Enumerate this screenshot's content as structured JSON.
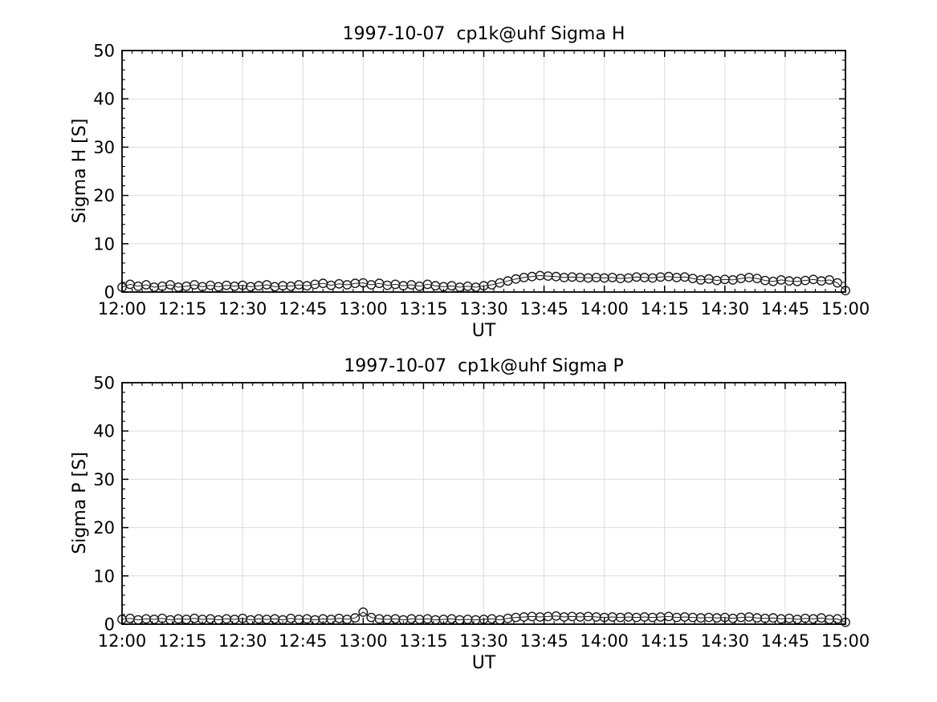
{
  "figure": {
    "background": "#ffffff",
    "colors": {
      "axis": "#000000",
      "grid": "#dcdcdc",
      "marker": "#1a1a1a",
      "line": "#1a1a1a",
      "text": "#000000"
    }
  },
  "chart_data": [
    {
      "type": "line",
      "title": "1997-10-07  cp1k@uhf Sigma H",
      "xlabel": "UT",
      "ylabel": "Sigma H [S]",
      "marker": "open-circle",
      "grid": true,
      "legend": "none",
      "ylim": [
        0,
        50
      ],
      "yticks": [
        0,
        10,
        20,
        30,
        40,
        50
      ],
      "y_minor_step": 2,
      "x_range_minutes": [
        720,
        900
      ],
      "xtick_labels": [
        "12:00",
        "12:15",
        "12:30",
        "12:45",
        "13:00",
        "13:15",
        "13:30",
        "13:45",
        "14:00",
        "14:15",
        "14:30",
        "14:45",
        "15:00"
      ],
      "x_minor_step_minutes": 2.5,
      "x_start_minutes": 720,
      "x_step_minutes": 2,
      "values": [
        1.0,
        1.6,
        1.2,
        1.5,
        1.0,
        1.2,
        1.5,
        1.0,
        1.2,
        1.5,
        1.1,
        1.4,
        1.1,
        1.4,
        1.2,
        1.4,
        1.1,
        1.3,
        1.5,
        1.1,
        1.3,
        1.2,
        1.5,
        1.3,
        1.6,
        1.8,
        1.4,
        1.7,
        1.5,
        1.8,
        1.9,
        1.5,
        1.8,
        1.4,
        1.6,
        1.3,
        1.5,
        1.2,
        1.6,
        1.3,
        1.1,
        1.3,
        1.0,
        1.2,
        1.0,
        1.3,
        1.5,
        1.9,
        2.3,
        2.7,
        3.0,
        3.2,
        3.4,
        3.3,
        3.2,
        3.0,
        3.1,
        3.0,
        2.9,
        3.0,
        2.9,
        3.0,
        2.8,
        2.9,
        3.1,
        3.0,
        2.9,
        3.1,
        3.2,
        3.0,
        3.1,
        2.8,
        2.5,
        2.7,
        2.4,
        2.6,
        2.5,
        2.8,
        3.0,
        2.8,
        2.4,
        2.2,
        2.5,
        2.3,
        2.2,
        2.4,
        2.6,
        2.3,
        2.5,
        1.9,
        0.3
      ]
    },
    {
      "type": "line",
      "title": "1997-10-07  cp1k@uhf Sigma P",
      "xlabel": "UT",
      "ylabel": "Sigma P [S]",
      "marker": "open-circle",
      "grid": true,
      "legend": "none",
      "ylim": [
        0,
        50
      ],
      "yticks": [
        0,
        10,
        20,
        30,
        40,
        50
      ],
      "y_minor_step": 2,
      "x_range_minutes": [
        720,
        900
      ],
      "xtick_labels": [
        "12:00",
        "12:15",
        "12:30",
        "12:45",
        "13:00",
        "13:15",
        "13:30",
        "13:45",
        "14:00",
        "14:15",
        "14:30",
        "14:45",
        "15:00"
      ],
      "x_minor_step_minutes": 2.5,
      "x_start_minutes": 720,
      "x_step_minutes": 2,
      "values": [
        1.0,
        1.2,
        0.9,
        1.1,
        1.0,
        1.2,
        0.9,
        1.1,
        1.0,
        1.2,
        1.0,
        1.1,
        0.9,
        1.1,
        1.0,
        1.2,
        0.9,
        1.1,
        1.0,
        1.1,
        0.9,
        1.2,
        1.0,
        1.1,
        0.9,
        1.1,
        1.0,
        1.2,
        1.0,
        1.3,
        2.5,
        1.4,
        1.1,
        1.0,
        1.1,
        0.9,
        1.1,
        1.0,
        1.1,
        0.9,
        1.0,
        1.1,
        0.9,
        1.0,
        0.9,
        1.0,
        1.1,
        0.9,
        1.2,
        1.4,
        1.5,
        1.6,
        1.5,
        1.6,
        1.7,
        1.5,
        1.6,
        1.5,
        1.6,
        1.5,
        1.4,
        1.5,
        1.4,
        1.5,
        1.4,
        1.5,
        1.4,
        1.5,
        1.6,
        1.4,
        1.5,
        1.4,
        1.3,
        1.4,
        1.3,
        1.4,
        1.2,
        1.4,
        1.5,
        1.3,
        1.2,
        1.3,
        1.1,
        1.2,
        1.0,
        1.2,
        1.1,
        1.3,
        1.0,
        1.1,
        0.4
      ]
    }
  ]
}
